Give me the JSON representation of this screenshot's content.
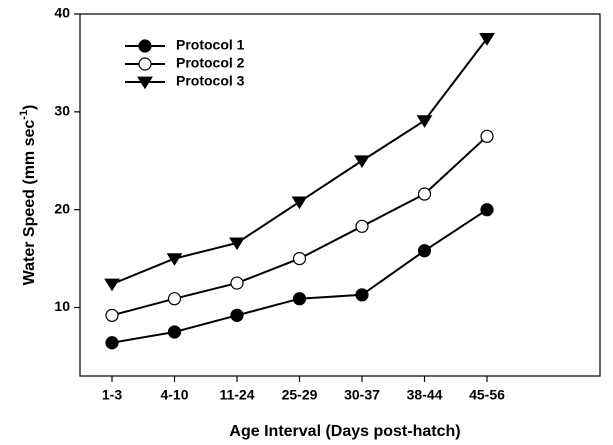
{
  "chart_data": {
    "type": "line",
    "x_label": "Age Interval (Days post-hatch)",
    "y_label": "Water Speed (mm sec",
    "y_label_superscript": "-1",
    "y_label_end": ")",
    "categories": [
      "1-3",
      "4-10",
      "11-24",
      "25-29",
      "30-37",
      "38-44",
      "45-56"
    ],
    "series": [
      {
        "name": "Protocol 1",
        "color": "#000000",
        "marker": "filled-circle",
        "values": [
          6.4,
          7.5,
          9.2,
          10.9,
          11.3,
          15.8,
          20.0
        ]
      },
      {
        "name": "Protocol 2",
        "color": "#000000",
        "marker": "open-circle",
        "values": [
          9.2,
          10.9,
          12.5,
          15.0,
          18.3,
          21.6,
          27.5
        ]
      },
      {
        "name": "Protocol 3",
        "color": "#000000",
        "marker": "filled-triangle-down",
        "values": [
          12.4,
          15.0,
          16.6,
          20.8,
          25.0,
          29.1,
          37.5
        ]
      }
    ],
    "ylim": [
      3,
      40
    ],
    "yticks": [
      10,
      20,
      30,
      40
    ],
    "grid": false,
    "legend": "upper left"
  }
}
